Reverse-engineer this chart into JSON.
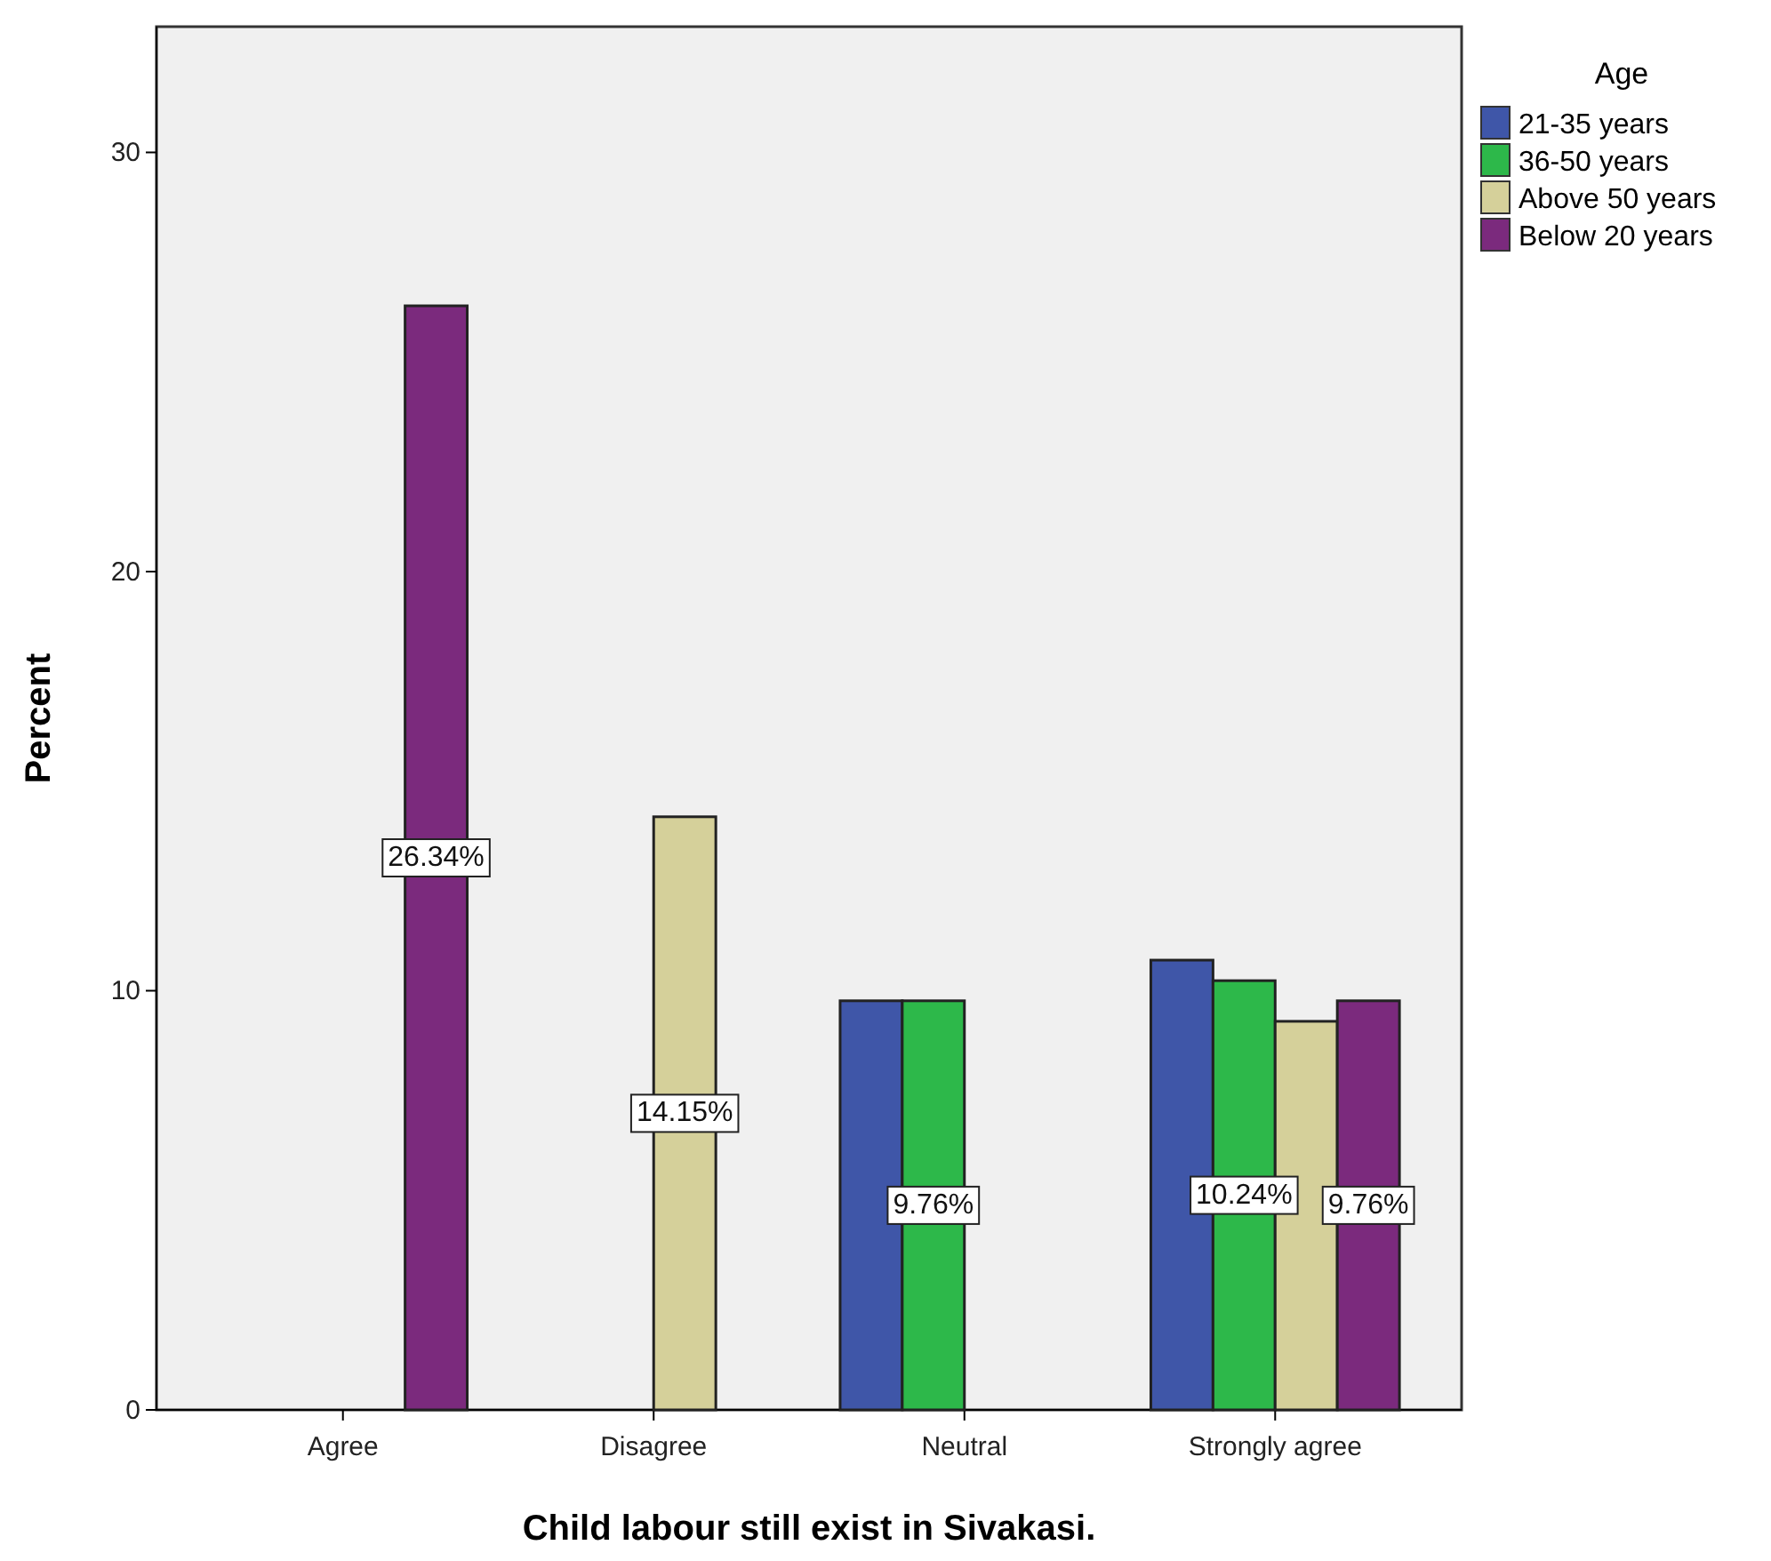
{
  "chart_data": {
    "type": "bar",
    "xlabel": "Child labour still exist in Sivakasi.",
    "ylabel": "Percent",
    "legend_title": "Age",
    "legend": "top right",
    "categories": [
      "Agree",
      "Disagree",
      "Neutral",
      "Strongly agree"
    ],
    "ylim": [
      0,
      33
    ],
    "yticks": [
      0,
      10,
      20,
      30
    ],
    "grid": false,
    "series": [
      {
        "name": "21-35 years",
        "color": "#3f56a8",
        "values": [
          null,
          null,
          9.76,
          10.73
        ],
        "value_labels": [
          null,
          null,
          null,
          null
        ]
      },
      {
        "name": "36-50 years",
        "color": "#2db84a",
        "values": [
          null,
          null,
          9.76,
          10.24
        ],
        "value_labels": [
          null,
          null,
          "9.76%",
          "10.24%"
        ]
      },
      {
        "name": "Above 50 years",
        "color": "#d5d09a",
        "values": [
          null,
          14.15,
          null,
          9.27
        ],
        "value_labels": [
          null,
          "14.15%",
          null,
          null
        ]
      },
      {
        "name": "Below 20 years",
        "color": "#7b2a7d",
        "values": [
          26.34,
          null,
          null,
          9.76
        ],
        "value_labels": [
          "26.34%",
          null,
          null,
          "9.76%"
        ]
      }
    ]
  }
}
